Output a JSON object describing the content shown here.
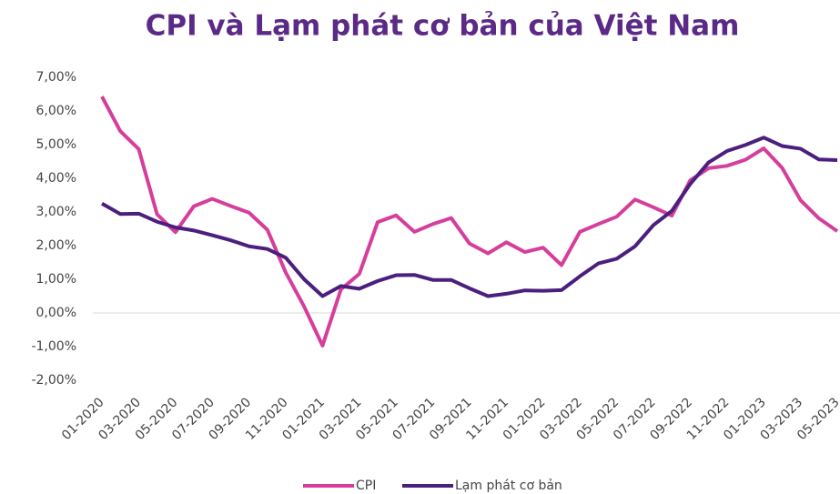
{
  "chart_data": {
    "type": "line",
    "title": "CPI và Lạm phát cơ bản của Việt Nam",
    "categories": [
      "01-2020",
      null,
      "03-2020",
      null,
      "05-2020",
      null,
      "07-2020",
      null,
      "09-2020",
      null,
      "11-2020",
      null,
      "01-2021",
      null,
      "03-2021",
      null,
      "05-2021",
      null,
      "07-2021",
      null,
      "09-2021",
      null,
      "11-2021",
      null,
      "01-2022",
      null,
      "03-2022",
      null,
      "05-2022",
      null,
      "07-2022",
      null,
      "09-2022",
      null,
      "11-2022",
      null,
      "01-2023",
      null,
      "03-2023",
      null,
      "05-2023"
    ],
    "series": [
      {
        "name": "CPI",
        "color": "#d63e9c",
        "values": [
          6.43,
          5.4,
          4.87,
          2.93,
          2.4,
          3.17,
          3.39,
          3.18,
          2.98,
          2.47,
          1.2,
          0.19,
          -0.97,
          0.7,
          1.16,
          2.7,
          2.9,
          2.41,
          2.64,
          2.82,
          2.06,
          1.77,
          2.1,
          1.81,
          1.94,
          1.42,
          2.41,
          2.64,
          2.86,
          3.37,
          3.14,
          2.89,
          3.94,
          4.3,
          4.37,
          4.55,
          4.89,
          4.31,
          3.35,
          2.81,
          2.43
        ]
      },
      {
        "name": "Lạm phát cơ bản",
        "color": "#4b1f7d",
        "values": [
          3.25,
          2.94,
          2.95,
          2.71,
          2.54,
          2.45,
          2.31,
          2.16,
          1.98,
          1.9,
          1.64,
          1.0,
          0.5,
          0.8,
          0.72,
          0.95,
          1.12,
          1.13,
          0.98,
          0.98,
          0.73,
          0.5,
          0.57,
          0.67,
          0.66,
          0.68,
          1.09,
          1.47,
          1.61,
          1.98,
          2.61,
          3.03,
          3.83,
          4.47,
          4.81,
          4.99,
          5.21,
          4.96,
          4.88,
          4.56,
          4.54
        ]
      }
    ],
    "ylim": [
      -2,
      7
    ],
    "yticks": [
      {
        "value": -2,
        "label": "-2,00%"
      },
      {
        "value": -1,
        "label": "-1,00%"
      },
      {
        "value": 0,
        "label": "0,00%"
      },
      {
        "value": 1,
        "label": "1,00%"
      },
      {
        "value": 2,
        "label": "2,00%"
      },
      {
        "value": 3,
        "label": "3,00%"
      },
      {
        "value": 4,
        "label": "4,00%"
      },
      {
        "value": 5,
        "label": "5,00%"
      },
      {
        "value": 6,
        "label": "6,00%"
      },
      {
        "value": 7,
        "label": "7,00%"
      }
    ],
    "legend": "bottom"
  }
}
